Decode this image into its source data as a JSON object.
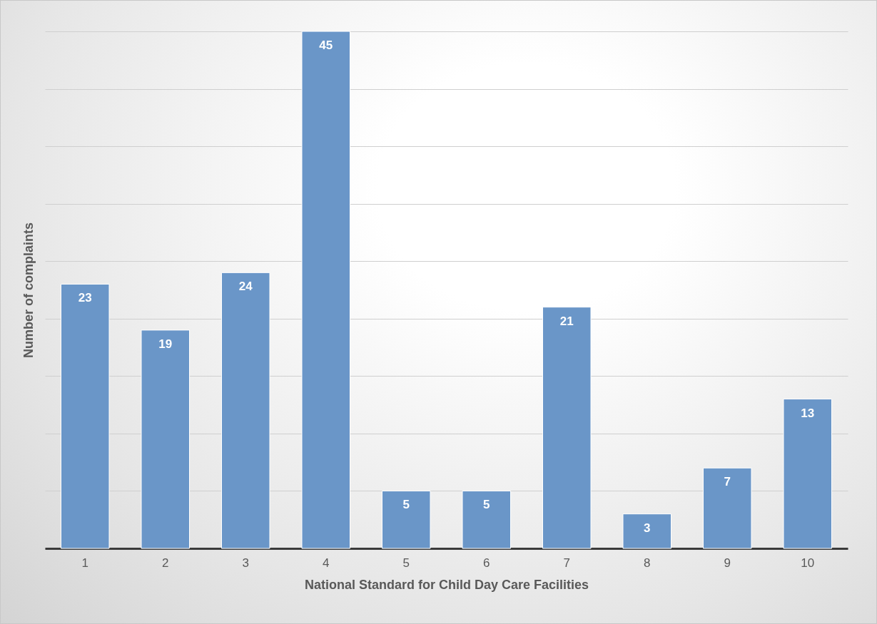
{
  "chart_data": {
    "type": "bar",
    "xlabel": "National Standard for Child Day Care Facilities",
    "ylabel": "Number of complaints",
    "categories": [
      "1",
      "2",
      "3",
      "4",
      "5",
      "6",
      "7",
      "8",
      "9",
      "10"
    ],
    "values": [
      23,
      19,
      24,
      45,
      5,
      5,
      21,
      3,
      7,
      13
    ],
    "color": "#6a96c8",
    "ylim": [
      0,
      45
    ],
    "yticks": [
      0,
      5,
      10,
      15,
      20,
      25,
      30,
      35,
      40,
      45
    ],
    "tick_labels": "x",
    "grid": "y",
    "data_labels": true
  }
}
